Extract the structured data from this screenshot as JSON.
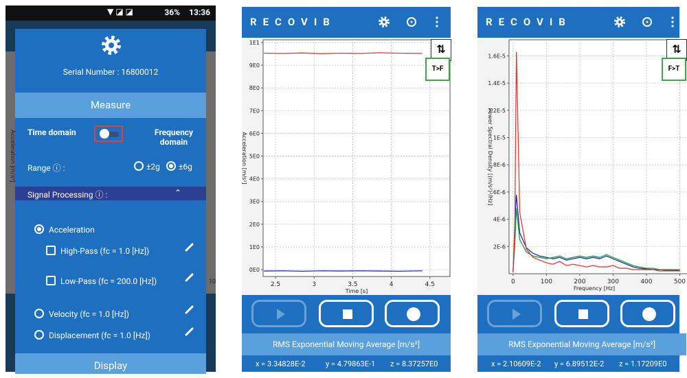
{
  "status_bar": {
    "battery": "36%",
    "time": "13:36"
  },
  "background": {
    "y_label": "Acceleration [m/s²]",
    "x_tick": "10"
  },
  "settings_dialog": {
    "serial": "Serial Number : 16800012",
    "measure": "Measure",
    "time_domain": "Time domain",
    "frequency_domain": "Frequency domain",
    "range": "Range ⓘ :",
    "range_options": [
      "±2g",
      "±6g"
    ],
    "signal_processing": "Signal Processing ⓘ :",
    "options": [
      "Acceleration",
      "High-Pass (fc = 1.0 [Hz])",
      "Low-Pass (fc = 200.0 [Hz])",
      "Velocity (fc = 1.0 [Hz])",
      "Displacement (fc = 1.0 [Hz])"
    ],
    "display": "Display"
  },
  "screens": [
    {
      "app": "RECOVIB",
      "toggle": "T>F",
      "rms_title": "RMS Exponential Moving Average [m/s²]",
      "rms_values": [
        "x = 3.34828E-2",
        "y = 4.79863E-1",
        "z = 8.37257E0"
      ]
    },
    {
      "app": "RECOVIB",
      "toggle": "F>T",
      "rms_title": "RMS Exponential Moving Average [m/s²]",
      "rms_values": [
        "x = 2.10609E-2",
        "y = 6.89512E-2",
        "z = 1.17209E0"
      ]
    }
  ],
  "chart_data": [
    {
      "type": "line",
      "xlabel": "Time [s]",
      "ylabel": "Acceleration [m/s²]",
      "grid": true,
      "x": [
        2.35,
        2.6,
        2.85,
        3.1,
        3.35,
        3.6,
        3.85,
        4.1,
        4.4
      ],
      "series": [
        {
          "color": "#e53935",
          "values": [
            9.53,
            9.52,
            9.54,
            9.51,
            9.53,
            9.52,
            9.55,
            9.53,
            9.52
          ]
        },
        {
          "color": "#1e2fc0",
          "values": [
            -0.06,
            -0.05,
            -0.07,
            -0.05,
            -0.06,
            -0.05,
            -0.06,
            -0.07,
            -0.05
          ]
        }
      ],
      "xlim": [
        2.34,
        4.76
      ],
      "xticks": [
        2.5,
        3,
        3.5,
        4,
        4.5
      ],
      "ylim": [
        -0.3,
        10.12
      ],
      "yticks": [
        {
          "value": 0,
          "label": "0E0"
        },
        {
          "value": 1,
          "label": "1E0"
        },
        {
          "value": 2,
          "label": "2E0"
        },
        {
          "value": 3,
          "label": "3E0"
        },
        {
          "value": 4,
          "label": "4E0"
        },
        {
          "value": 5,
          "label": "5E0"
        },
        {
          "value": 6,
          "label": "6E0"
        },
        {
          "value": 7,
          "label": "7E0"
        },
        {
          "value": 8,
          "label": "8E0"
        },
        {
          "value": 9,
          "label": "9E0"
        },
        {
          "value": 10,
          "label": "1E1"
        }
      ]
    },
    {
      "type": "line",
      "xlabel": "Frequency [Hz]",
      "ylabel": "Power Spectral Density [(m/s²)²/Hz]",
      "grid": true,
      "x": [
        0,
        5,
        10,
        20,
        40,
        60,
        80,
        100,
        120,
        140,
        160,
        180,
        200,
        220,
        240,
        260,
        280,
        300,
        320,
        340,
        360,
        380,
        400,
        420,
        440,
        460,
        480,
        500
      ],
      "series": [
        {
          "color": "#1e2fc0",
          "values": [
            1e-07,
            3.5e-06,
            5.8e-06,
            3e-06,
            1.9e-06,
            1.5e-06,
            1.3e-06,
            1.2e-06,
            1.1e-06,
            1.2e-06,
            1e-06,
            1.1e-06,
            1.2e-06,
            1.1e-06,
            1.2e-06,
            1.1e-06,
            1.3e-06,
            1.1e-06,
            9e-07,
            7e-07,
            5e-07,
            4e-07,
            3.5e-07,
            3e-07,
            3e-07,
            2.5e-07,
            2.5e-07,
            2.5e-07
          ]
        },
        {
          "color": "#1e9e3a",
          "values": [
            1e-07,
            2e-06,
            4.8e-06,
            2.5e-06,
            1.6e-06,
            1.3e-06,
            1.2e-06,
            1.1e-06,
            1.2e-06,
            1.3e-06,
            1.1e-06,
            1.2e-06,
            1.3e-06,
            1.2e-06,
            1.3e-06,
            1.2e-06,
            1.4e-06,
            1.2e-06,
            1e-06,
            8e-07,
            6e-07,
            5e-07,
            4e-07,
            4e-07,
            3e-07,
            3e-07,
            3e-07,
            3e-07
          ]
        },
        {
          "color": "#e53935",
          "values": [
            1e-07,
            3e-06,
            1.63e-05,
            4.5e-06,
            1.8e-06,
            1.2e-06,
            1e-06,
            8e-07,
            7e-07,
            9e-07,
            6e-07,
            7e-07,
            6e-07,
            5e-07,
            6e-07,
            5e-07,
            5e-07,
            6e-07,
            4e-07,
            4e-07,
            3e-07,
            3e-07,
            3e-07,
            3e-07,
            2e-07,
            2e-07,
            2e-07,
            2e-07
          ]
        }
      ],
      "xlim": [
        -12,
        530
      ],
      "xticks": [
        0,
        100,
        200,
        300,
        400,
        500
      ],
      "ylim": [
        0,
        1.718e-05
      ],
      "yticks": [
        {
          "value": 2e-06,
          "label": "2E-6"
        },
        {
          "value": 4e-06,
          "label": "4E-6"
        },
        {
          "value": 6e-06,
          "label": "6E-6"
        },
        {
          "value": 8e-06,
          "label": "8E-6"
        },
        {
          "value": 1e-05,
          "label": "1E-5"
        },
        {
          "value": 1.2e-05,
          "label": "1.2E-5"
        },
        {
          "value": 1.4e-05,
          "label": "1.4E-5"
        },
        {
          "value": 1.6e-05,
          "label": "1.6E-5"
        }
      ]
    }
  ]
}
